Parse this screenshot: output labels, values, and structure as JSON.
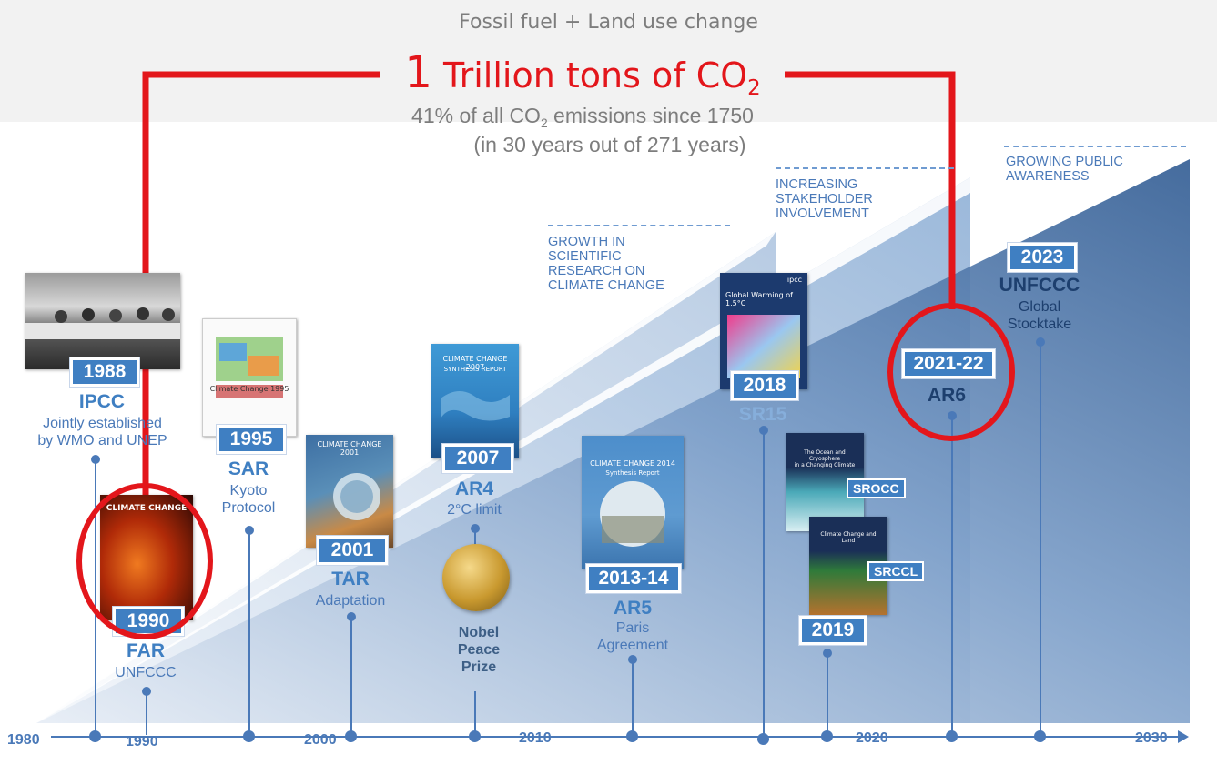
{
  "header": {
    "subtitle": "Fossil fuel + Land use change",
    "main_num": "1",
    "main_text": "Trillion tons of CO",
    "main_sub": "2",
    "line1_pre": "41% of all CO",
    "line1_sub": "2",
    "line1_post": " emissions since 1750",
    "line2": "(in 30 years out of 271 years)"
  },
  "trends": [
    {
      "label": "GROWTH IN\nSCIENTIFIC\nRESEARCH ON\nCLIMATE CHANGE"
    },
    {
      "label": "INCREASING\nSTAKEHOLDER\nINVOLVEMENT"
    },
    {
      "label": "GROWING PUBLIC\nAWARENESS"
    }
  ],
  "axis": {
    "labels": [
      "1980",
      "1990",
      "2000",
      "2010",
      "2020",
      "2030"
    ]
  },
  "milestones": {
    "ipcc": {
      "year": "1988",
      "title": "IPCC",
      "desc": "Jointly established\nby WMO and UNEP"
    },
    "far": {
      "year": "1990",
      "title": "FAR",
      "desc": "UNFCCC",
      "cover_title": "CLIMATE CHANGE"
    },
    "sar": {
      "year": "1995",
      "title": "SAR",
      "desc": "Kyoto\nProtocol",
      "cover_title": "Climate Change 1995"
    },
    "tar": {
      "year": "2001",
      "title": "TAR",
      "desc": "Adaptation",
      "cover_title": "CLIMATE CHANGE 2001"
    },
    "ar4": {
      "year": "2007",
      "title": "AR4",
      "desc": "2°C limit",
      "cover_title": "CLIMATE CHANGE 2007",
      "cover_sub": "SYNTHESIS REPORT"
    },
    "nobel": {
      "desc": "Nobel\nPeace\nPrize"
    },
    "ar5": {
      "year": "2013-14",
      "title": "AR5",
      "desc": "Paris\nAgreement",
      "cover_title": "CLIMATE CHANGE 2014",
      "cover_sub": "Synthesis Report"
    },
    "sr15": {
      "year": "2018",
      "title": "SR15",
      "cover_title": "Global Warming of 1.5°C",
      "cover_brand": "ipcc"
    },
    "srocc": {
      "tag": "SROCC",
      "cover_title": "The Ocean and Cryosphere\nin a Changing Climate"
    },
    "srccl": {
      "tag": "SRCCL",
      "cover_title": "Climate Change and Land"
    },
    "sr2019": {
      "year": "2019"
    },
    "ar6": {
      "year": "2021-22",
      "title": "AR6"
    },
    "gst": {
      "year": "2023",
      "title": "UNFCCC",
      "desc": "Global\nStocktake"
    }
  },
  "colors": {
    "accent_red": "#e3161b",
    "primary_blue": "#3f7fc2",
    "dark_blue": "#2a578e",
    "text_grey": "#7d7d7d"
  }
}
